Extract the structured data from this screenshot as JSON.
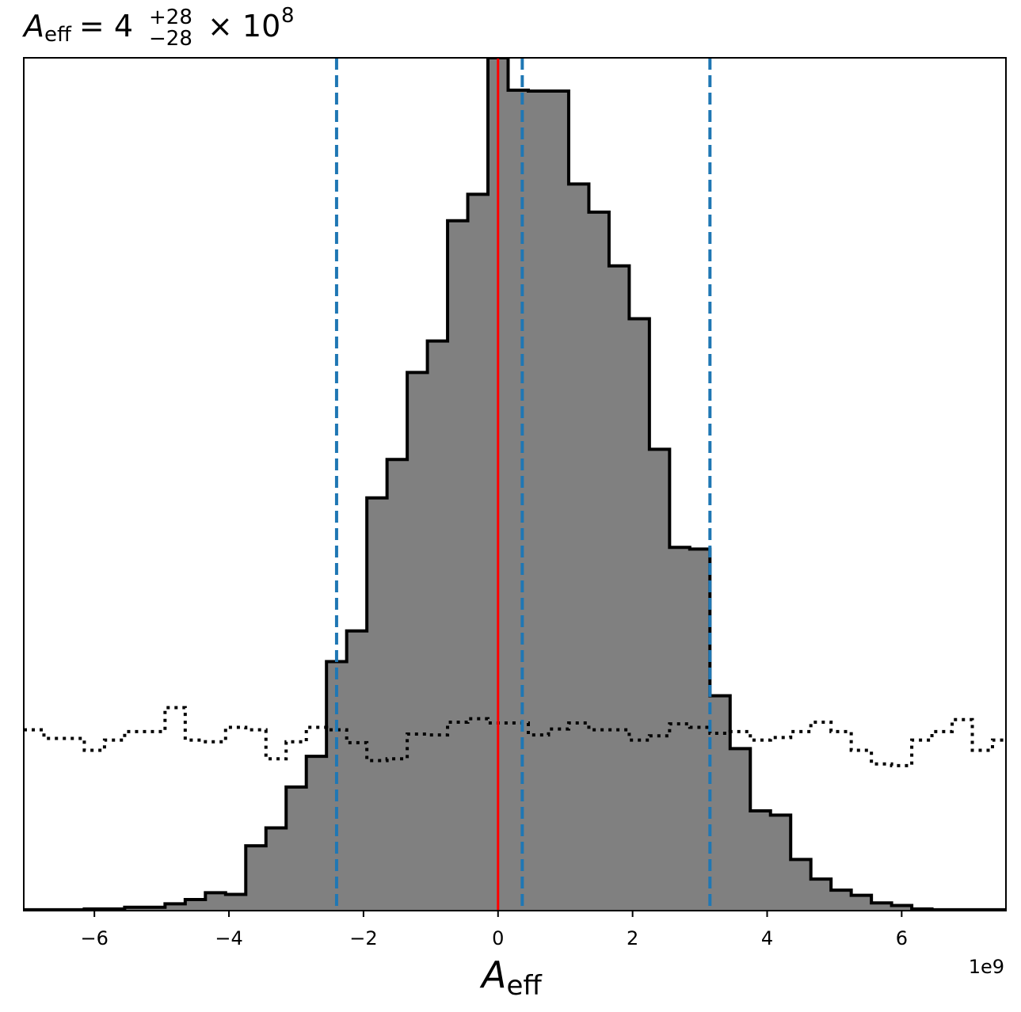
{
  "chart_data": {
    "type": "histogram",
    "title": {
      "symbol": "A",
      "symbol_sub": "eff",
      "equals": "= 4",
      "sup": "+28",
      "sub": "−28",
      "times": "× 10",
      "exp": "8"
    },
    "xlabel": {
      "symbol": "A",
      "sub": "eff"
    },
    "x_offset_label": "1e9",
    "xlim": [
      -7.05,
      7.55
    ],
    "ylim": [
      0,
      1.0
    ],
    "bin_width": 0.3,
    "x_ticks": [
      -6,
      -4,
      -2,
      0,
      2,
      4,
      6
    ],
    "x_tick_labels": [
      "−6",
      "−4",
      "−2",
      "0",
      "2",
      "4",
      "6"
    ],
    "histogram": {
      "bin_edges_start": -7.05,
      "heights": [
        0.001,
        0.001,
        0.001,
        0.002,
        0.002,
        0.004,
        0.004,
        0.008,
        0.013,
        0.021,
        0.019,
        0.076,
        0.097,
        0.145,
        0.181,
        0.292,
        0.328,
        0.484,
        0.529,
        0.631,
        0.668,
        0.809,
        0.84,
        1.0,
        0.962,
        0.961,
        0.961,
        0.852,
        0.819,
        0.756,
        0.694,
        0.541,
        0.426,
        0.424,
        0.252,
        0.19,
        0.117,
        0.112,
        0.06,
        0.037,
        0.024,
        0.018,
        0.009,
        0.006,
        0.002,
        0.001,
        0.001,
        0.001,
        0.001
      ],
      "fill_color": "#808080",
      "edge_color": "#000000"
    },
    "prior": {
      "style": "dotted",
      "color": "#000000",
      "heights": [
        0.212,
        0.202,
        0.202,
        0.188,
        0.2,
        0.21,
        0.21,
        0.238,
        0.2,
        0.198,
        0.215,
        0.212,
        0.178,
        0.198,
        0.215,
        0.212,
        0.197,
        0.176,
        0.178,
        0.207,
        0.206,
        0.221,
        0.225,
        0.22,
        0.22,
        0.206,
        0.213,
        0.22,
        0.212,
        0.212,
        0.2,
        0.205,
        0.219,
        0.215,
        0.208,
        0.21,
        0.2,
        0.203,
        0.21,
        0.221,
        0.21,
        0.188,
        0.172,
        0.17,
        0.2,
        0.21,
        0.224,
        0.188,
        0.2,
        0.205,
        0.212,
        0.219
      ]
    },
    "vertical_lines": [
      {
        "x": -2.4,
        "style": "dashed",
        "color": "#1f77b4"
      },
      {
        "x": 0.36,
        "style": "dashed",
        "color": "#1f77b4"
      },
      {
        "x": 3.15,
        "style": "dashed",
        "color": "#1f77b4"
      },
      {
        "x": 0.0,
        "style": "solid",
        "color": "#ff0000"
      }
    ],
    "grid": false
  }
}
